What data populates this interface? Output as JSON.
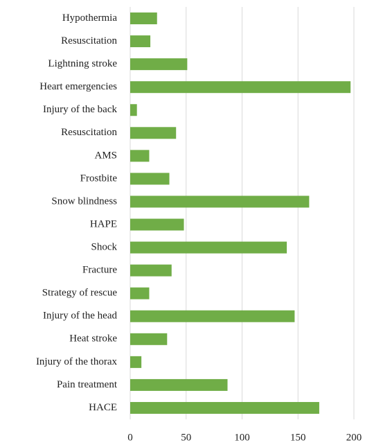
{
  "chart_data": {
    "type": "hbar",
    "categories": [
      "Hypothermia",
      "Resuscitation",
      "Lightning stroke",
      "Heart emergencies",
      "Injury of the back",
      "Resuscitation",
      "AMS",
      "Frostbite",
      "Snow blindness",
      "HAPE",
      "Shock",
      "Fracture",
      "Strategy of rescue",
      "Injury of the head",
      "Heat stroke",
      "Injury of the thorax",
      "Pain treatment",
      "HACE"
    ],
    "values": [
      24,
      18,
      51,
      197,
      6,
      41,
      17,
      35,
      160,
      48,
      140,
      37,
      17,
      147,
      33,
      10,
      87,
      169
    ],
    "color": "#70ad47",
    "xlim": [
      0,
      200
    ],
    "xticks": [
      0,
      50,
      100,
      150,
      200
    ],
    "grid": true
  }
}
